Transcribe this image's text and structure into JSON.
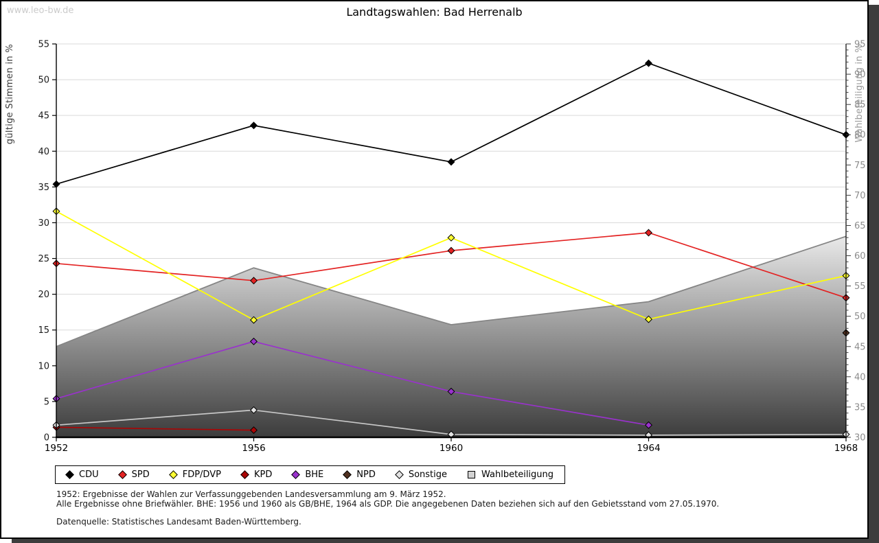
{
  "page": {
    "watermark": "www.leo-bw.de",
    "title": "Landtagswahlen: Bad Herrenalb"
  },
  "chart_data": {
    "type": "line",
    "title": "Landtagswahlen: Bad Herrenalb",
    "categories": [
      "1952",
      "1956",
      "1960",
      "1964",
      "1968"
    ],
    "left_axis": {
      "label": "gültige Stimmen in %",
      "min": 0,
      "max": 55,
      "step": 5
    },
    "right_axis": {
      "label": "Wahlbeteiligung in %",
      "min": 30,
      "max": 95,
      "step": 5,
      "minor_step": 1
    },
    "grid": "horizontal gridlines every 5 units",
    "legend_position": "bottom",
    "series": [
      {
        "name": "CDU",
        "axis": "left",
        "color": "#000000",
        "values": [
          35.4,
          43.6,
          38.5,
          52.3,
          42.3
        ]
      },
      {
        "name": "SPD",
        "axis": "left",
        "color": "#e32222",
        "values": [
          24.3,
          21.9,
          26.1,
          28.6,
          19.5
        ]
      },
      {
        "name": "FDP/DVP",
        "axis": "left",
        "color": "#ffff00",
        "marker_fill": "#ffff33",
        "values": [
          31.6,
          16.4,
          27.9,
          16.5,
          22.6
        ]
      },
      {
        "name": "KPD",
        "axis": "left",
        "color": "#aa0505",
        "values": [
          1.4,
          1.0,
          null,
          null,
          null
        ]
      },
      {
        "name": "BHE",
        "axis": "left",
        "color": "#9932cc",
        "values": [
          5.4,
          13.4,
          6.4,
          1.7,
          null
        ]
      },
      {
        "name": "NPD",
        "axis": "left",
        "color": "#50301f",
        "values": [
          null,
          null,
          null,
          null,
          14.6
        ]
      },
      {
        "name": "Sonstige",
        "axis": "left",
        "color": "#c9c9c9",
        "marker_fill": "#e2e2e2",
        "values": [
          1.7,
          3.8,
          0.4,
          0.3,
          0.4
        ]
      }
    ],
    "area_series": {
      "name": "Wahlbeteiligung",
      "axis": "right",
      "type": "area",
      "edge_color": "#858585",
      "fill_top": "#e9e9e9",
      "fill_bottom": "#3c3c3c",
      "legend_fill": "#d2d2d2",
      "values": [
        45.0,
        58.0,
        48.6,
        52.4,
        63.2
      ]
    }
  },
  "footnotes": {
    "line1": "1952: Ergebnisse der Wahlen zur Verfassunggebenden Landesversammlung am 9. März 1952.",
    "line2": "Alle Ergebnisse ohne Briefwähler. BHE: 1956 und 1960 als GB/BHE, 1964 als GDP. Die angegebenen Daten beziehen sich auf den Gebietsstand vom 27.05.1970.",
    "source": "Datenquelle: Statistisches Landesamt Baden-Württemberg."
  }
}
